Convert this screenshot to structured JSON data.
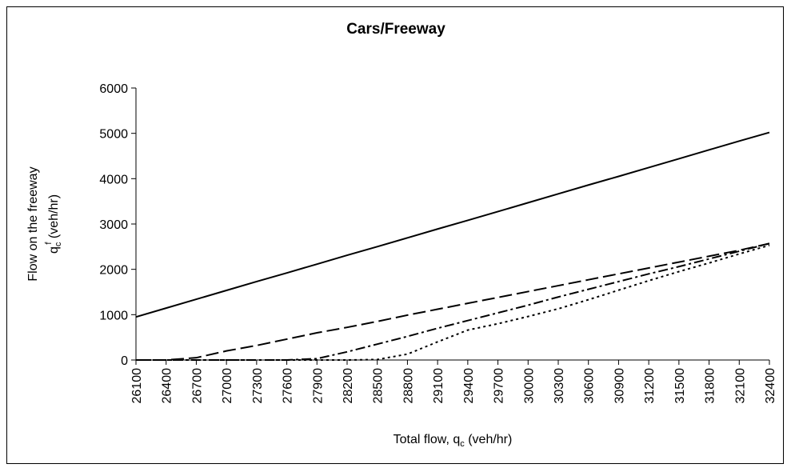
{
  "chart_data": {
    "type": "line",
    "title": "Cars/Freeway",
    "xlabel": [
      "Total flow, q",
      "c",
      " (veh/hr)"
    ],
    "ylabel": [
      "Flow on the freeway",
      "q",
      "c",
      "f",
      " (veh/hr)"
    ],
    "x": [
      26100,
      26400,
      26700,
      27000,
      27300,
      27600,
      27900,
      28200,
      28500,
      28800,
      29100,
      29400,
      29700,
      30000,
      30300,
      30600,
      30900,
      31200,
      31500,
      31800,
      32100,
      32400
    ],
    "xlim": [
      26100,
      32400
    ],
    "xticks": [
      26100,
      26400,
      26700,
      27000,
      27300,
      27600,
      27900,
      28200,
      28500,
      28800,
      29100,
      29400,
      29700,
      30000,
      30300,
      30600,
      30900,
      31200,
      31500,
      31800,
      32100,
      32400
    ],
    "ylim": [
      0,
      6000
    ],
    "yticks": [
      0,
      1000,
      2000,
      3000,
      4000,
      5000,
      6000
    ],
    "grid": false,
    "series": [
      {
        "color": "#000000",
        "dash": "solid",
        "values": [
          950,
          1145,
          1340,
          1535,
          1730,
          1920,
          2115,
          2310,
          2500,
          2695,
          2890,
          3080,
          3275,
          3470,
          3665,
          3860,
          4050,
          4245,
          4440,
          4635,
          4830,
          5020
        ]
      },
      {
        "color": "#000000",
        "dash": "dashed",
        "values": [
          0,
          0,
          50,
          200,
          320,
          460,
          600,
          720,
          850,
          990,
          1120,
          1250,
          1380,
          1510,
          1640,
          1770,
          1900,
          2030,
          2160,
          2290,
          2420,
          2570
        ]
      },
      {
        "color": "#000000",
        "dash": "dashdot",
        "values": [
          0,
          0,
          0,
          0,
          0,
          0,
          30,
          180,
          350,
          520,
          700,
          870,
          1040,
          1210,
          1390,
          1560,
          1730,
          1900,
          2060,
          2230,
          2400,
          2570
        ]
      },
      {
        "color": "#000000",
        "dash": "dotted",
        "values": [
          0,
          0,
          0,
          0,
          0,
          0,
          0,
          0,
          10,
          130,
          400,
          660,
          800,
          960,
          1130,
          1330,
          1540,
          1750,
          1950,
          2140,
          2340,
          2530
        ]
      }
    ]
  }
}
